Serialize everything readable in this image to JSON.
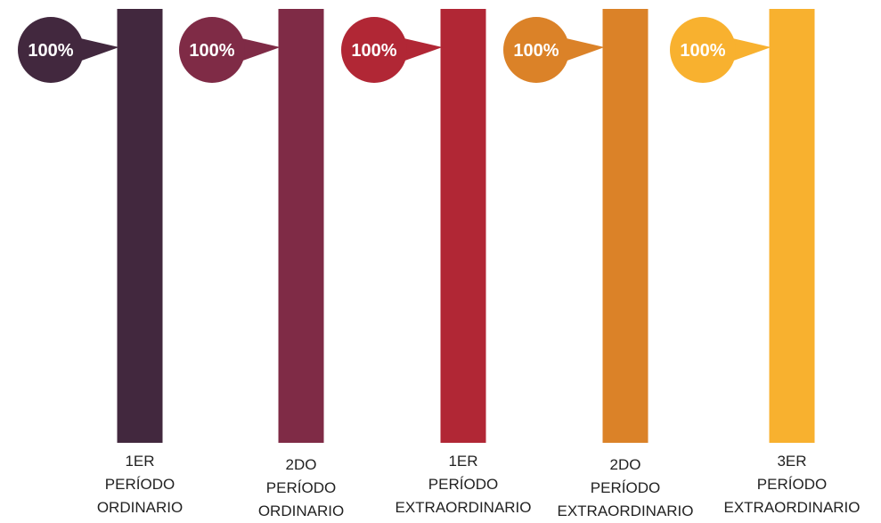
{
  "chart_data": {
    "type": "bar",
    "categories": [
      [
        "1ER",
        "PERÍODO",
        "ORDINARIO"
      ],
      [
        "2DO",
        "PERÍODO",
        "ORDINARIO"
      ],
      [
        "1ER",
        "PERÍODO",
        "EXTRAORDINARIO"
      ],
      [
        "2DO",
        "PERÍODO",
        "EXTRAORDINARIO"
      ],
      [
        "3ER",
        "PERÍODO",
        "EXTRAORDINARIO"
      ]
    ],
    "values": [
      100,
      100,
      100,
      100,
      100
    ],
    "data_labels": [
      "100%",
      "100%",
      "100%",
      "100%",
      "100%"
    ],
    "colors": [
      "#42283e",
      "#7f2b46",
      "#b12735",
      "#db8228",
      "#f8b12f"
    ],
    "ylim": [
      0,
      100
    ],
    "title": "",
    "xlabel": "",
    "ylabel": "",
    "grid": false,
    "legend": "none"
  }
}
